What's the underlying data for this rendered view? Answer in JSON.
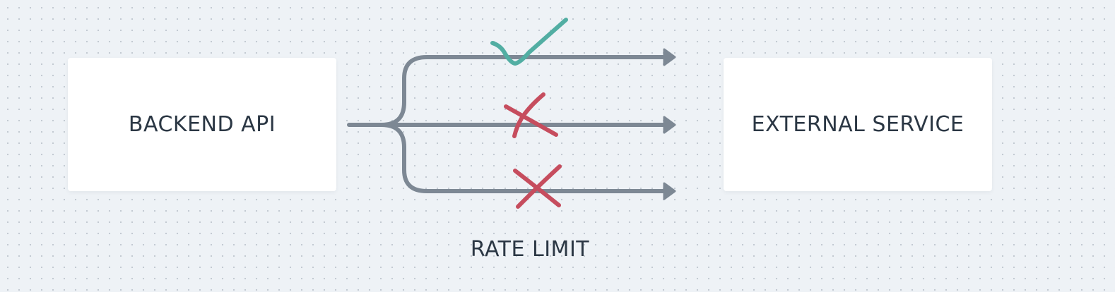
{
  "nodes": {
    "source": {
      "label": "BACKEND API"
    },
    "target": {
      "label": "EXTERNAL SERVICE"
    }
  },
  "caption": {
    "label": "RATE LIMIT"
  },
  "requests": [
    {
      "status": "allowed",
      "marker": "check-icon"
    },
    {
      "status": "blocked",
      "marker": "cross-icon"
    },
    {
      "status": "blocked",
      "marker": "cross-icon"
    }
  ],
  "colors": {
    "background": "#eef2f6",
    "box": "#ffffff",
    "text": "#2b3744",
    "line": "#7d8894",
    "allowed": "#52aea3",
    "blocked": "#c64d5e"
  }
}
